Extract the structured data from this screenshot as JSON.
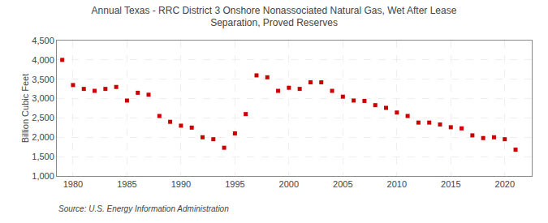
{
  "chart_data": {
    "type": "scatter",
    "title": "Annual Texas - RRC District 3 Onshore Nonassociated Natural Gas, Wet After Lease\nSeparation, Proved Reserves",
    "ylabel": "Billion Cubic Feet",
    "source": "Source: U.S. Energy Information Administration",
    "x": [
      1979,
      1980,
      1981,
      1982,
      1983,
      1984,
      1985,
      1986,
      1987,
      1988,
      1989,
      1990,
      1991,
      1992,
      1993,
      1994,
      1995,
      1996,
      1997,
      1998,
      1999,
      2000,
      2001,
      2002,
      2003,
      2004,
      2005,
      2006,
      2007,
      2008,
      2009,
      2010,
      2011,
      2012,
      2013,
      2014,
      2015,
      2016,
      2017,
      2018,
      2019,
      2020,
      2021
    ],
    "values": [
      4000,
      3350,
      3250,
      3200,
      3250,
      3300,
      2950,
      3150,
      3100,
      2550,
      2400,
      2300,
      2250,
      2000,
      1950,
      1730,
      2100,
      2600,
      3600,
      3550,
      3200,
      3280,
      3250,
      3420,
      3420,
      3200,
      3050,
      2950,
      2940,
      2830,
      2760,
      2640,
      2550,
      2380,
      2380,
      2330,
      2260,
      2230,
      2050,
      1980,
      2000,
      1950,
      1680
    ],
    "color": "#cc0000",
    "marker": "square",
    "xlim": [
      1978.5,
      2022.5
    ],
    "xticks": [
      1980,
      1985,
      1990,
      1995,
      2000,
      2005,
      2010,
      2015,
      2020
    ],
    "ylim": [
      1000,
      4500
    ],
    "yticks": [
      {
        "value": 1000,
        "label": "1,000"
      },
      {
        "value": 1500,
        "label": "1,500"
      },
      {
        "value": 2000,
        "label": "2,000"
      },
      {
        "value": 2500,
        "label": "2,500"
      },
      {
        "value": 3000,
        "label": "3,000"
      },
      {
        "value": 3500,
        "label": "3,500"
      },
      {
        "value": 4000,
        "label": "4,000"
      },
      {
        "value": 4500,
        "label": "4,500"
      }
    ],
    "grid": true
  }
}
